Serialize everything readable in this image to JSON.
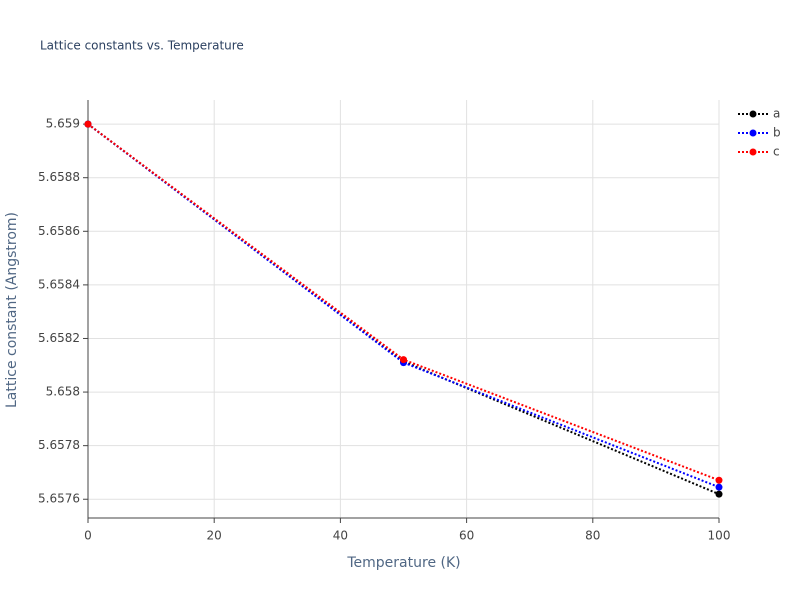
{
  "chart_data": {
    "type": "line",
    "title": "Lattice constants vs. Temperature",
    "xlabel": "Temperature (K)",
    "ylabel": "Lattice constant (Angstrom)",
    "x": [
      0,
      50,
      100
    ],
    "series": [
      {
        "name": "a",
        "color": "#000000",
        "values": [
          5.659,
          5.658114,
          5.657619
        ]
      },
      {
        "name": "b",
        "color": "#0000ff",
        "values": [
          5.659,
          5.65811,
          5.657645
        ]
      },
      {
        "name": "c",
        "color": "#ff0000",
        "values": [
          5.659,
          5.658121,
          5.657671
        ]
      }
    ],
    "xlim": [
      0,
      100
    ],
    "xticks": [
      0,
      20,
      40,
      60,
      80,
      100
    ],
    "ylim": [
      5.65753,
      5.65909
    ],
    "yticks": [
      5.6576,
      5.6578,
      5.658,
      5.6582,
      5.6584,
      5.6586,
      5.6588,
      5.659
    ],
    "grid": true,
    "legend": "top-right"
  }
}
